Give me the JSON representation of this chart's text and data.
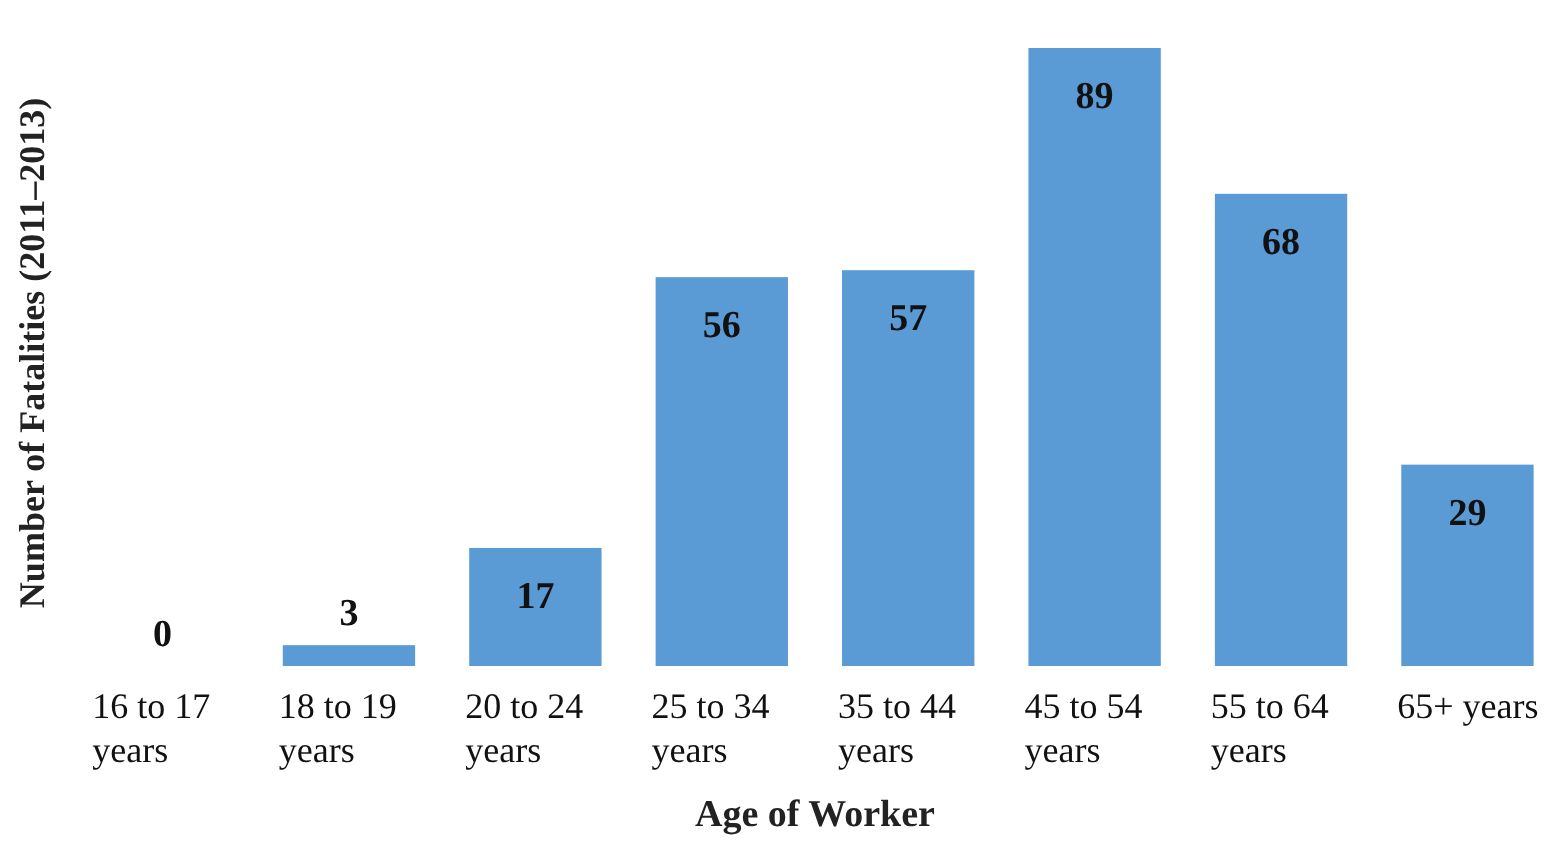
{
  "chart_data": {
    "type": "bar",
    "xlabel": "Age of Worker",
    "ylabel": "Number of Fatalities (2011–2013)",
    "categories": [
      "16 to 17 years",
      "18 to 19 years",
      "20 to 24 years",
      "25 to 34 years",
      "35 to 44 years",
      "45 to 54 years",
      "55 to 64 years",
      "65+ years"
    ],
    "values": [
      0,
      3,
      17,
      56,
      57,
      89,
      68,
      29
    ],
    "color": "#5b9bd5",
    "data_labels": true
  }
}
